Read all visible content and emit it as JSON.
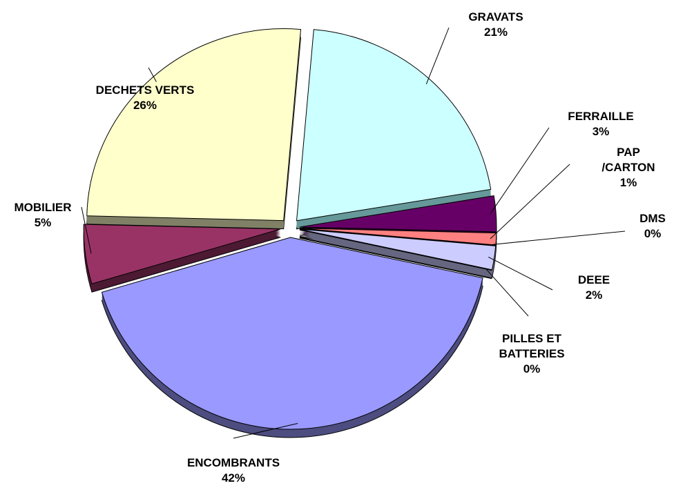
{
  "chart_data": {
    "type": "pie",
    "categories": [
      "GRAVATS",
      "FERRAILLE",
      "PAP /CARTON",
      "DMS",
      "DEEE",
      "PILLES ET BATTERIES",
      "ENCOMBRANTS",
      "MOBILIER",
      "DECHETS VERTS"
    ],
    "values": [
      21,
      3,
      1,
      0,
      2,
      0,
      42,
      5,
      26
    ],
    "value_labels": [
      "21%",
      "3%",
      "1%",
      "0%",
      "2%",
      "0%",
      "42%",
      "5%",
      "26%"
    ],
    "colors": [
      "#ccffff",
      "#660066",
      "#ff8080",
      "#0066cc",
      "#ccccff",
      "#000080",
      "#9999ff",
      "#993366",
      "#ffffcc"
    ],
    "side_colors": [
      "#669999",
      "#330033",
      "#804040",
      "#003366",
      "#666680",
      "#000040",
      "#4d4d80",
      "#4d1a33",
      "#808066"
    ]
  }
}
